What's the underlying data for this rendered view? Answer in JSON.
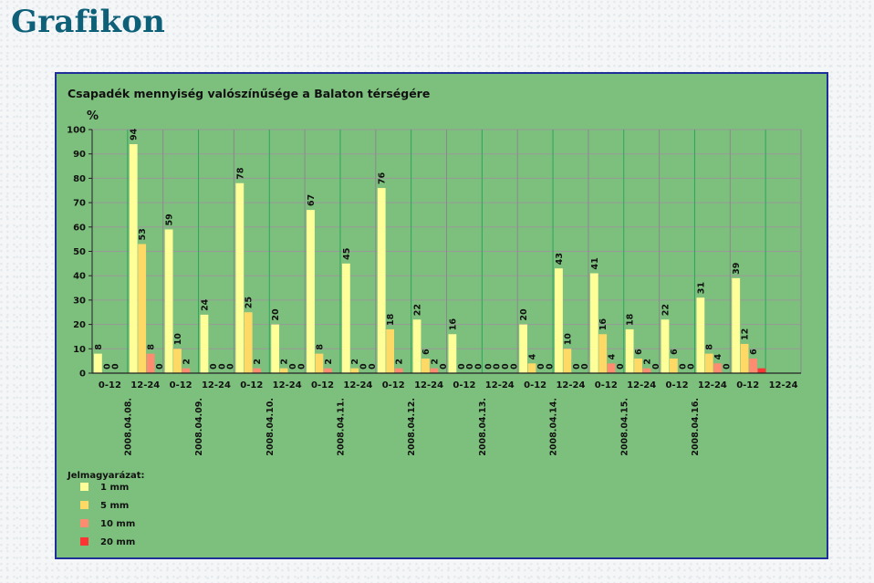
{
  "page": {
    "title": "Grafikon"
  },
  "chart_data": {
    "type": "bar",
    "title": "Csapadék mennyiség valószínűsége a Balaton térségére",
    "ylabel": "%",
    "ylim": [
      0,
      100
    ],
    "yticks": [
      0,
      10,
      20,
      30,
      40,
      50,
      60,
      70,
      80,
      90,
      100
    ],
    "grid": true,
    "legend_position": "bottom-left",
    "legend_title": "Jelmagyarázat:",
    "dates": [
      "2008.04.08.",
      "2008.04.09.",
      "2008.04.10.",
      "2008.04.11.",
      "2008.04.12.",
      "2008.04.13.",
      "2008.04.14.",
      "2008.04.15.",
      "2008.04.16."
    ],
    "categories": [
      "0-12",
      "12-24",
      "0-12",
      "12-24",
      "0-12",
      "12-24",
      "0-12",
      "12-24",
      "0-12",
      "12-24",
      "0-12",
      "12-24",
      "0-12",
      "12-24",
      "0-12",
      "12-24",
      "0-12",
      "12-24",
      "0-12",
      "12-24"
    ],
    "series": [
      {
        "name": "1 mm",
        "color": "#ffff99",
        "values": [
          8,
          94,
          59,
          24,
          78,
          20,
          67,
          45,
          76,
          22,
          16,
          0,
          20,
          43,
          41,
          18,
          22,
          31,
          39,
          0
        ]
      },
      {
        "name": "5 mm",
        "color": "#ffd966",
        "values": [
          0,
          53,
          10,
          0,
          25,
          2,
          8,
          2,
          18,
          6,
          0,
          0,
          4,
          10,
          16,
          6,
          6,
          8,
          12,
          0
        ]
      },
      {
        "name": "10 mm",
        "color": "#ff8c70",
        "values": [
          0,
          8,
          2,
          0,
          2,
          0,
          2,
          0,
          2,
          2,
          0,
          0,
          0,
          0,
          4,
          2,
          0,
          4,
          6,
          0
        ]
      },
      {
        "name": "20 mm",
        "color": "#ff3333",
        "values": [
          0,
          0,
          0,
          0,
          0,
          0,
          0,
          0,
          0,
          0,
          0,
          0,
          0,
          0,
          0,
          0,
          0,
          0,
          2,
          0
        ]
      }
    ],
    "labels_shown": [
      [
        true,
        true,
        true,
        true,
        true,
        true,
        true,
        true,
        true,
        true,
        true,
        true,
        true,
        true,
        true,
        true,
        true,
        true,
        true,
        false
      ],
      [
        true,
        true,
        true,
        true,
        true,
        true,
        true,
        true,
        true,
        true,
        true,
        true,
        true,
        true,
        true,
        true,
        true,
        true,
        true,
        false
      ],
      [
        true,
        true,
        true,
        true,
        true,
        true,
        true,
        true,
        true,
        true,
        true,
        true,
        true,
        true,
        true,
        true,
        true,
        true,
        true,
        false
      ],
      [
        false,
        true,
        false,
        true,
        false,
        true,
        false,
        true,
        false,
        true,
        true,
        true,
        true,
        true,
        true,
        true,
        true,
        true,
        false,
        false
      ]
    ]
  }
}
